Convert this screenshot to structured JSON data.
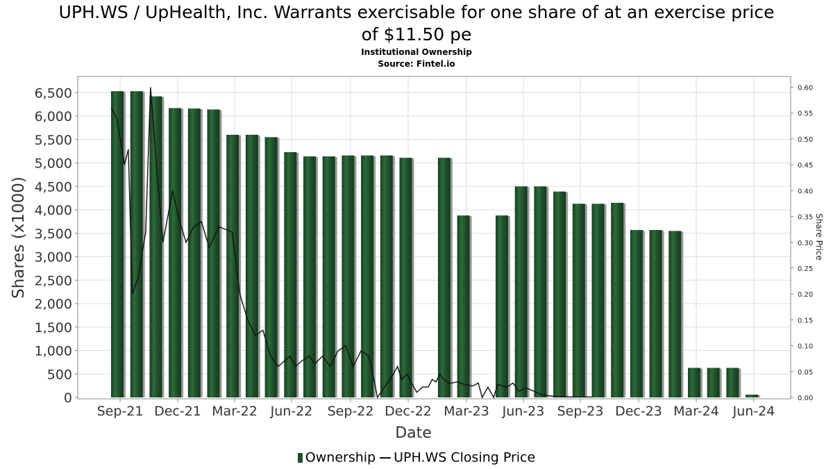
{
  "chart_data": {
    "type": "bar",
    "title": "UPH.WS / UpHealth, Inc. Warrants exercisable for one share of at an exercise price of $11.50 pe",
    "title_line1": "UPH.WS / UpHealth, Inc. Warrants exercisable for one share of at an exercise price",
    "title_line2": "of $11.50 pe",
    "subtitle": "Institutional Ownership",
    "source": "Source: Fintel.io",
    "xlabel": "Date",
    "ylabel": "Shares (x1000)",
    "y2label": "Share Price",
    "ylim": [
      0,
      6800
    ],
    "y2lim": [
      0,
      0.62
    ],
    "y_ticks": [
      "0",
      "500",
      "1,000",
      "1,500",
      "2,000",
      "2,500",
      "3,000",
      "3,500",
      "4,000",
      "4,500",
      "5,000",
      "5,500",
      "6,000",
      "6,500"
    ],
    "y2_ticks": [
      "0.00",
      "0.05",
      "0.10",
      "0.15",
      "0.20",
      "0.25",
      "0.30",
      "0.35",
      "0.40",
      "0.45",
      "0.50",
      "0.55",
      "0.60"
    ],
    "x_ticks": [
      "Sep-21",
      "Dec-21",
      "Mar-22",
      "Jun-22",
      "Sep-22",
      "Dec-22",
      "Mar-23",
      "Jun-23",
      "Sep-23",
      "Dec-23",
      "Mar-24",
      "Jun-24"
    ],
    "grid": true,
    "legend_position": "bottom",
    "series": [
      {
        "name": "Ownership",
        "color": "#1f4f2a",
        "values": [
          6530,
          6530,
          6420,
          6170,
          6160,
          6140,
          5600,
          5600,
          5550,
          5230,
          5140,
          5140,
          5160,
          5160,
          5160,
          5110,
          null,
          5110,
          3880,
          null,
          3880,
          4500,
          4500,
          4390,
          4130,
          4130,
          4150,
          3570,
          3570,
          3550,
          630,
          630,
          630,
          60
        ]
      },
      {
        "name": "UPH.WS Closing Price",
        "color": "#000000",
        "axis": "right",
        "points": [
          [
            0,
            0.56
          ],
          [
            0.3,
            0.54
          ],
          [
            0.7,
            0.45
          ],
          [
            0.9,
            0.48
          ],
          [
            1.1,
            0.2
          ],
          [
            1.4,
            0.23
          ],
          [
            1.8,
            0.32
          ],
          [
            2.05,
            0.6
          ],
          [
            2.4,
            0.43
          ],
          [
            2.7,
            0.3
          ],
          [
            3.2,
            0.4
          ],
          [
            3.5,
            0.35
          ],
          [
            3.9,
            0.3
          ],
          [
            4.3,
            0.33
          ],
          [
            4.7,
            0.34
          ],
          [
            5.1,
            0.29
          ],
          [
            5.6,
            0.33
          ],
          [
            6.3,
            0.32
          ],
          [
            6.7,
            0.2
          ],
          [
            7.1,
            0.15
          ],
          [
            7.5,
            0.12
          ],
          [
            7.9,
            0.13
          ],
          [
            8.3,
            0.08
          ],
          [
            8.7,
            0.06
          ],
          [
            9.0,
            0.07
          ],
          [
            9.3,
            0.08
          ],
          [
            9.6,
            0.06
          ],
          [
            9.9,
            0.07
          ],
          [
            10.3,
            0.08
          ],
          [
            10.6,
            0.065
          ],
          [
            11.0,
            0.08
          ],
          [
            11.4,
            0.06
          ],
          [
            11.8,
            0.09
          ],
          [
            12.2,
            0.1
          ],
          [
            12.6,
            0.06
          ],
          [
            13.0,
            0.09
          ],
          [
            13.4,
            0.08
          ],
          [
            13.7,
            0.03
          ],
          [
            13.85,
            0.0
          ],
          [
            14.6,
            0.04
          ],
          [
            14.9,
            0.06
          ],
          [
            15.1,
            0.035
          ],
          [
            15.4,
            0.045
          ],
          [
            15.6,
            0.03
          ],
          [
            15.9,
            0.01
          ],
          [
            16.2,
            0.02
          ],
          [
            16.5,
            0.02
          ],
          [
            16.7,
            0.035
          ],
          [
            16.9,
            0.03
          ],
          [
            17.1,
            0.045
          ],
          [
            17.3,
            0.035
          ],
          [
            17.6,
            0.027
          ],
          [
            18.0,
            0.03
          ],
          [
            18.4,
            0.025
          ],
          [
            18.8,
            0.022
          ],
          [
            19.1,
            0.028
          ],
          [
            19.3,
            0.0
          ],
          [
            19.6,
            0.02
          ],
          [
            19.9,
            0.0
          ],
          [
            20.1,
            0.025
          ],
          [
            20.6,
            0.02
          ],
          [
            20.9,
            0.028
          ],
          [
            21.2,
            0.012
          ],
          [
            21.6,
            0.018
          ],
          [
            22.0,
            0.012
          ],
          [
            22.4,
            0.005
          ],
          [
            23.0,
            0.002
          ],
          [
            24.0,
            0.001
          ],
          [
            25.0,
            0.001
          ]
        ]
      }
    ]
  },
  "legend": {
    "ownership_label": "Ownership",
    "price_label": "UPH.WS Closing Price"
  }
}
